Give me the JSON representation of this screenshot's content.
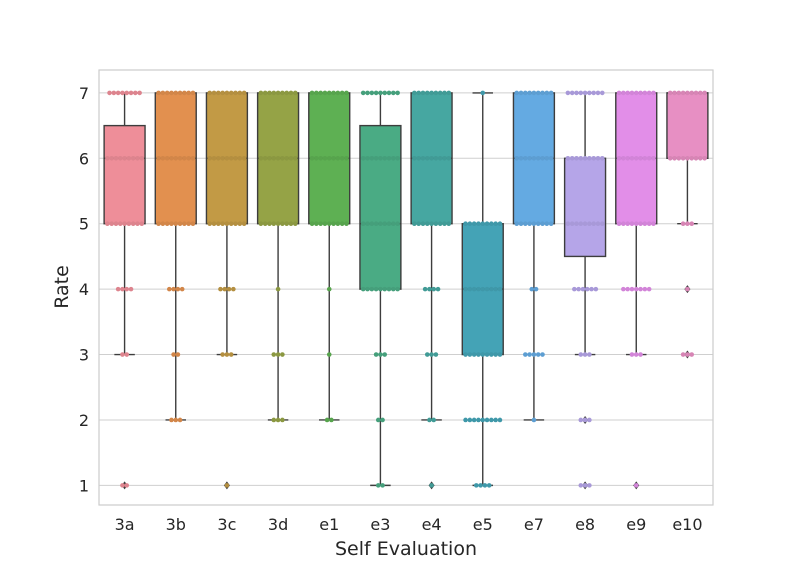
{
  "chart_data": {
    "type": "box",
    "xlabel": "Self Evaluation",
    "ylabel": "Rate",
    "ylim": [
      0.7,
      7.35
    ],
    "yticks": [
      1,
      2,
      3,
      4,
      5,
      6,
      7
    ],
    "grid": "horizontal",
    "overlay": "swarm points at each integer rate",
    "categories": [
      {
        "name": "3a",
        "color": "#ee8e99",
        "q1": 5,
        "median": 6,
        "q3": 6.5,
        "whisker_low": 3,
        "whisker_high": 7,
        "outliers": [
          1
        ],
        "points": {
          "7": 8,
          "6": 9,
          "5": 9,
          "4": 4,
          "3": 2,
          "1": 2
        }
      },
      {
        "name": "3b",
        "color": "#e2904f",
        "q1": 5,
        "median": 6,
        "q3": 7,
        "whisker_low": 2,
        "whisker_high": 7,
        "outliers": [],
        "points": {
          "7": 9,
          "6": 9,
          "5": 9,
          "4": 4,
          "3": 2,
          "2": 3
        }
      },
      {
        "name": "3c",
        "color": "#c29a45",
        "q1": 5,
        "median": 6,
        "q3": 7,
        "whisker_low": 3,
        "whisker_high": 7,
        "outliers": [
          1
        ],
        "points": {
          "7": 9,
          "6": 9,
          "5": 9,
          "4": 4,
          "3": 3,
          "1": 1
        }
      },
      {
        "name": "3d",
        "color": "#95a346",
        "q1": 5,
        "median": 6,
        "q3": 7,
        "whisker_low": 2,
        "whisker_high": 7,
        "outliers": [],
        "points": {
          "7": 9,
          "6": 9,
          "5": 9,
          "4": 1,
          "3": 3,
          "2": 3
        }
      },
      {
        "name": "e1",
        "color": "#5eb053",
        "q1": 5,
        "median": 6,
        "q3": 7,
        "whisker_low": 2,
        "whisker_high": 7,
        "outliers": [],
        "points": {
          "7": 9,
          "6": 9,
          "5": 9,
          "4": 1,
          "3": 1,
          "2": 2
        }
      },
      {
        "name": "e3",
        "color": "#4aab84",
        "q1": 4,
        "median": 5,
        "q3": 6.5,
        "whisker_low": 1,
        "whisker_high": 7,
        "outliers": [],
        "points": {
          "7": 9,
          "6": 9,
          "5": 9,
          "4": 9,
          "3": 3,
          "2": 2,
          "1": 2
        }
      },
      {
        "name": "e4",
        "color": "#46a7a1",
        "q1": 5,
        "median": 6,
        "q3": 7,
        "whisker_low": 2,
        "whisker_high": 7,
        "outliers": [
          1
        ],
        "points": {
          "7": 9,
          "6": 9,
          "5": 9,
          "4": 4,
          "3": 3,
          "2": 2,
          "1": 1
        }
      },
      {
        "name": "e5",
        "color": "#44a3b6",
        "q1": 3,
        "median": 4,
        "q3": 5,
        "whisker_low": 1,
        "whisker_high": 7,
        "outliers": [],
        "points": {
          "7": 1,
          "5": 9,
          "4": 9,
          "3": 9,
          "2": 9,
          "1": 4
        }
      },
      {
        "name": "e7",
        "color": "#64aae2",
        "q1": 5,
        "median": 6,
        "q3": 7,
        "whisker_low": 2,
        "whisker_high": 7,
        "outliers": [],
        "points": {
          "7": 9,
          "6": 9,
          "5": 9,
          "4": 2,
          "3": 5,
          "2": 1
        }
      },
      {
        "name": "e8",
        "color": "#b5a5e8",
        "q1": 4.5,
        "median": 6,
        "q3": 6,
        "whisker_low": 3,
        "whisker_high": 7,
        "outliers": [
          2,
          1
        ],
        "points": {
          "7": 9,
          "6": 9,
          "5": 9,
          "4": 6,
          "3": 3,
          "2": 3,
          "1": 3
        }
      },
      {
        "name": "e9",
        "color": "#e28ee8",
        "q1": 5,
        "median": 6,
        "q3": 7,
        "whisker_low": 3,
        "whisker_high": 7,
        "outliers": [
          1
        ],
        "points": {
          "7": 9,
          "6": 9,
          "5": 9,
          "4": 7,
          "3": 3,
          "1": 1
        }
      },
      {
        "name": "e10",
        "color": "#e78fc3",
        "q1": 6,
        "median": 7,
        "q3": 7,
        "whisker_low": 5,
        "whisker_high": 7,
        "outliers": [
          4,
          3
        ],
        "points": {
          "7": 9,
          "6": 9,
          "5": 3,
          "4": 1,
          "3": 3
        }
      }
    ]
  }
}
